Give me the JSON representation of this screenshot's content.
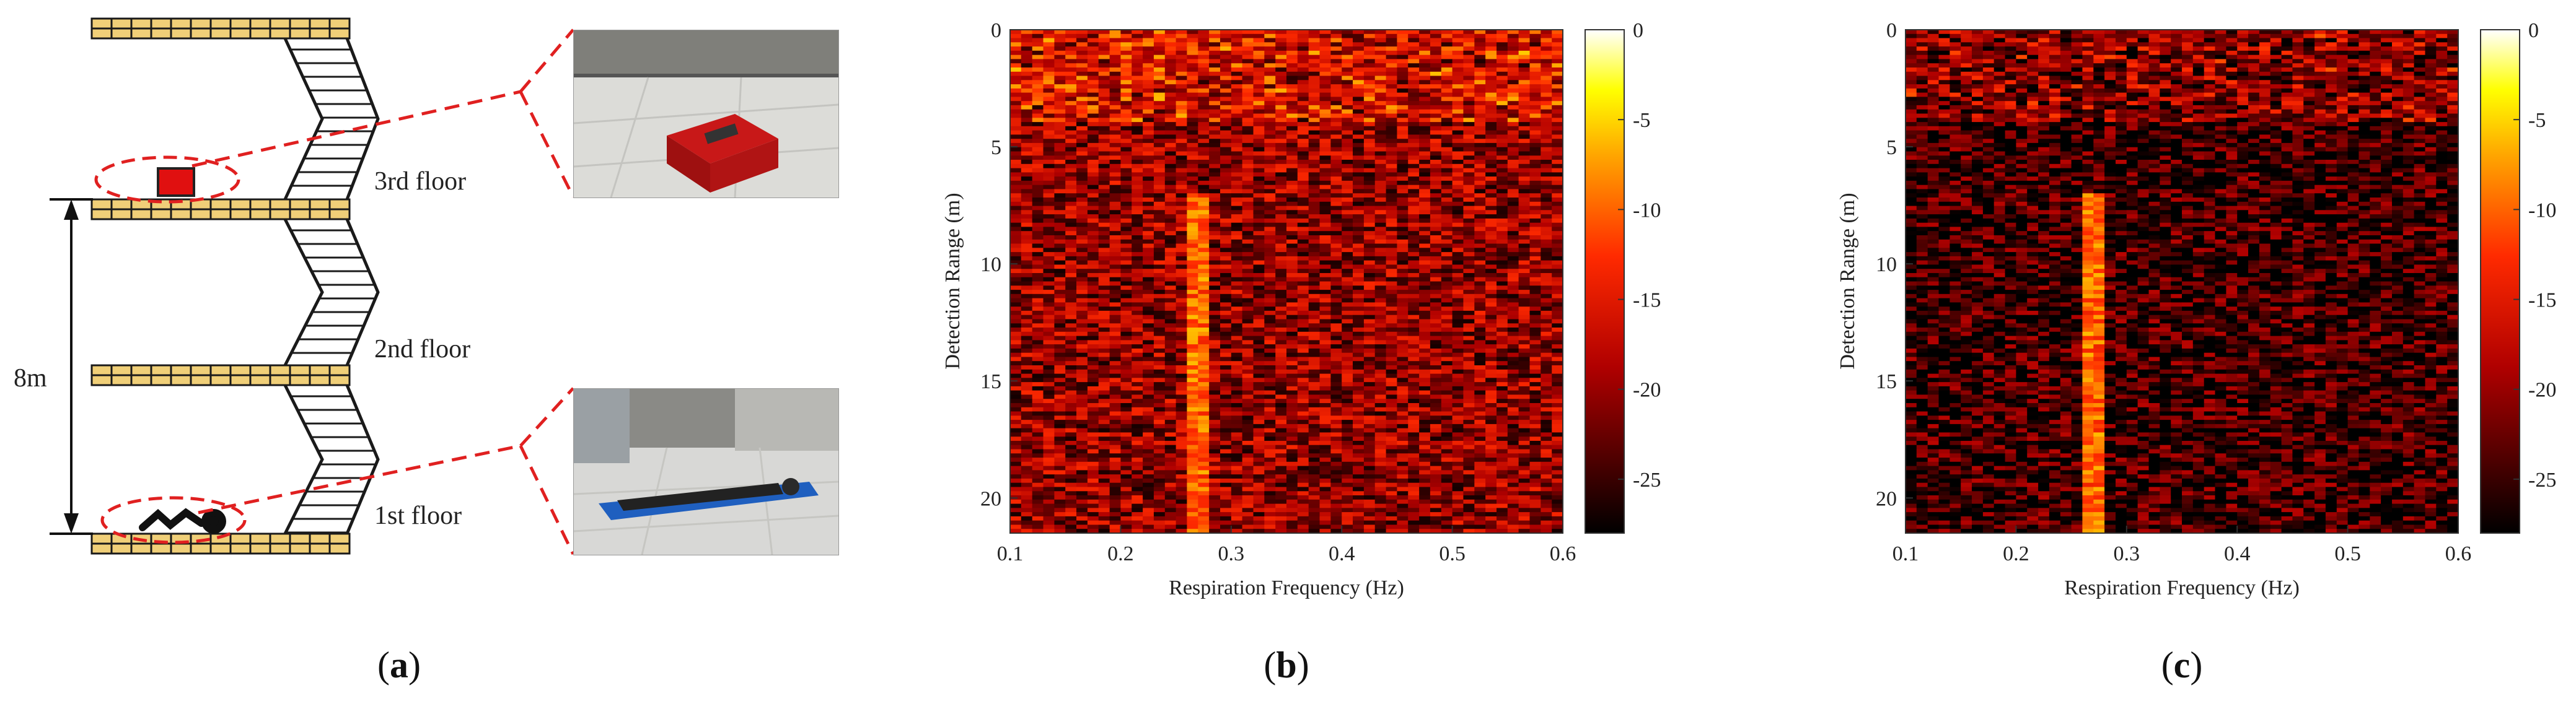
{
  "panel_a": {
    "floors": [
      "3rd floor",
      "2nd floor",
      "1st floor"
    ],
    "height_label": "8m",
    "label": "a"
  },
  "panel_b": {
    "label": "b"
  },
  "panel_c": {
    "label": "c"
  },
  "chart_data": [
    {
      "type": "heatmap",
      "panel": "b",
      "title": "",
      "xlabel": "Respiration Frequency (Hz)",
      "ylabel": "Detection Range (m)",
      "xlim": [
        0.1,
        0.6
      ],
      "ylim": [
        0,
        21.5
      ],
      "y_reversed": true,
      "xticks": [
        "0.1",
        "0.2",
        "0.3",
        "0.4",
        "0.5",
        "0.6"
      ],
      "yticks": [
        "0",
        "5",
        "10",
        "15",
        "20"
      ],
      "colorbar": {
        "range": [
          -28,
          0
        ],
        "ticks": [
          "0",
          "-5",
          "-10",
          "-15",
          "-20",
          "-25"
        ],
        "colormap": "hot"
      },
      "hotspot": {
        "frequency_hz": 0.27,
        "range_m": [
          7,
          21.5
        ],
        "level_db": -10
      },
      "background_clutter_range_m": [
        0,
        4
      ],
      "background_level_db": -20
    },
    {
      "type": "heatmap",
      "panel": "c",
      "title": "",
      "xlabel": "Respiration Frequency (Hz)",
      "ylabel": "Detection Range (m)",
      "xlim": [
        0.1,
        0.6
      ],
      "ylim": [
        0,
        21.5
      ],
      "y_reversed": true,
      "xticks": [
        "0.1",
        "0.2",
        "0.3",
        "0.4",
        "0.5",
        "0.6"
      ],
      "yticks": [
        "0",
        "5",
        "10",
        "15",
        "20"
      ],
      "colorbar": {
        "range": [
          -28,
          0
        ],
        "ticks": [
          "0",
          "-5",
          "-10",
          "-15",
          "-20",
          "-25"
        ],
        "colormap": "hot"
      },
      "hotspot": {
        "frequency_hz": 0.27,
        "range_m": [
          7,
          21.5
        ],
        "level_db": -10
      },
      "background_clutter_range_m": [
        0,
        4
      ],
      "background_level_db": -25
    }
  ]
}
